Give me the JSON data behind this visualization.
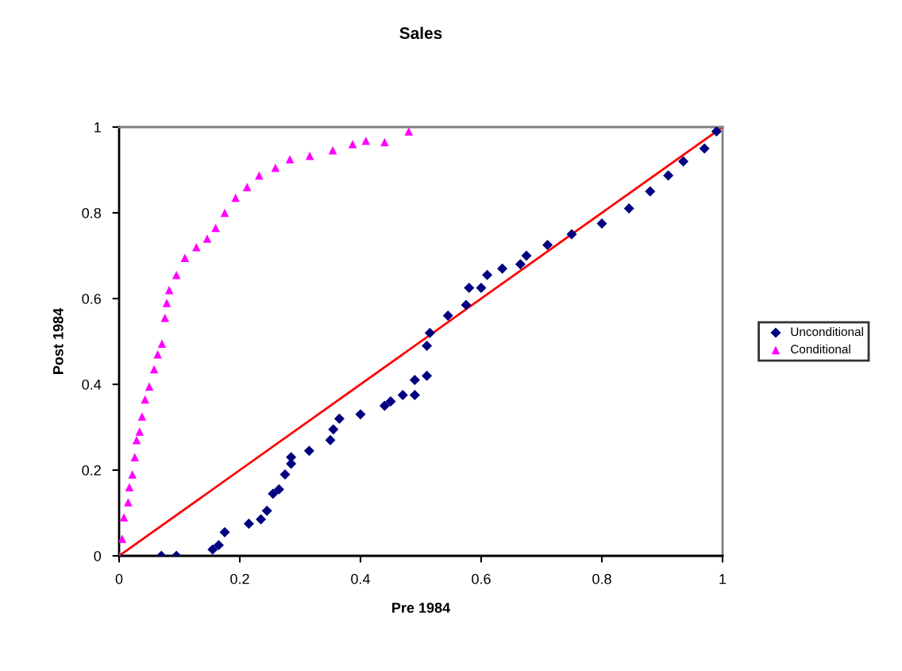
{
  "chart_data": {
    "type": "scatter",
    "title": "Sales",
    "xlabel": "Pre 1984",
    "ylabel": "Post 1984",
    "xlim": [
      0,
      1
    ],
    "ylim": [
      0,
      1
    ],
    "xticks": [
      0,
      0.2,
      0.4,
      0.6,
      0.8,
      1
    ],
    "yticks": [
      0,
      0.2,
      0.4,
      0.6,
      0.8,
      1
    ],
    "grid": false,
    "legend": "right",
    "series": [
      {
        "name": "Unconditional",
        "color": "#000080",
        "marker": "diamond",
        "x": [
          0.07,
          0.095,
          0.155,
          0.165,
          0.175,
          0.215,
          0.235,
          0.245,
          0.255,
          0.265,
          0.275,
          0.285,
          0.285,
          0.315,
          0.35,
          0.355,
          0.365,
          0.4,
          0.44,
          0.45,
          0.47,
          0.49,
          0.49,
          0.51,
          0.51,
          0.515,
          0.545,
          0.575,
          0.58,
          0.6,
          0.61,
          0.635,
          0.665,
          0.675,
          0.71,
          0.75,
          0.8,
          0.845,
          0.88,
          0.91,
          0.935,
          0.97,
          0.99
        ],
        "values": [
          0.0,
          0.0,
          0.015,
          0.025,
          0.055,
          0.075,
          0.085,
          0.105,
          0.145,
          0.155,
          0.19,
          0.215,
          0.23,
          0.245,
          0.27,
          0.295,
          0.32,
          0.33,
          0.35,
          0.36,
          0.375,
          0.375,
          0.41,
          0.42,
          0.49,
          0.52,
          0.56,
          0.585,
          0.625,
          0.625,
          0.655,
          0.67,
          0.68,
          0.7,
          0.725,
          0.75,
          0.775,
          0.81,
          0.85,
          0.887,
          0.92,
          0.95,
          0.99
        ]
      },
      {
        "name": "Conditional",
        "color": "#ff00ff",
        "marker": "triangle",
        "x": [
          0.0,
          0.005,
          0.008,
          0.015,
          0.017,
          0.022,
          0.026,
          0.029,
          0.034,
          0.038,
          0.043,
          0.05,
          0.058,
          0.064,
          0.071,
          0.076,
          0.079,
          0.083,
          0.095,
          0.109,
          0.128,
          0.146,
          0.16,
          0.175,
          0.193,
          0.212,
          0.232,
          0.259,
          0.283,
          0.316,
          0.354,
          0.387,
          0.409,
          0.44,
          0.48
        ],
        "values": [
          0.0,
          0.04,
          0.09,
          0.125,
          0.16,
          0.19,
          0.23,
          0.27,
          0.29,
          0.325,
          0.365,
          0.395,
          0.435,
          0.47,
          0.495,
          0.555,
          0.59,
          0.62,
          0.655,
          0.695,
          0.72,
          0.74,
          0.765,
          0.8,
          0.835,
          0.86,
          0.887,
          0.905,
          0.925,
          0.933,
          0.946,
          0.96,
          0.968,
          0.965,
          0.99
        ]
      },
      {
        "type": "line",
        "color": "#ff0000",
        "marker": "none",
        "line_style": "solid",
        "x": [
          0,
          1
        ],
        "values": [
          0,
          1
        ]
      }
    ]
  }
}
